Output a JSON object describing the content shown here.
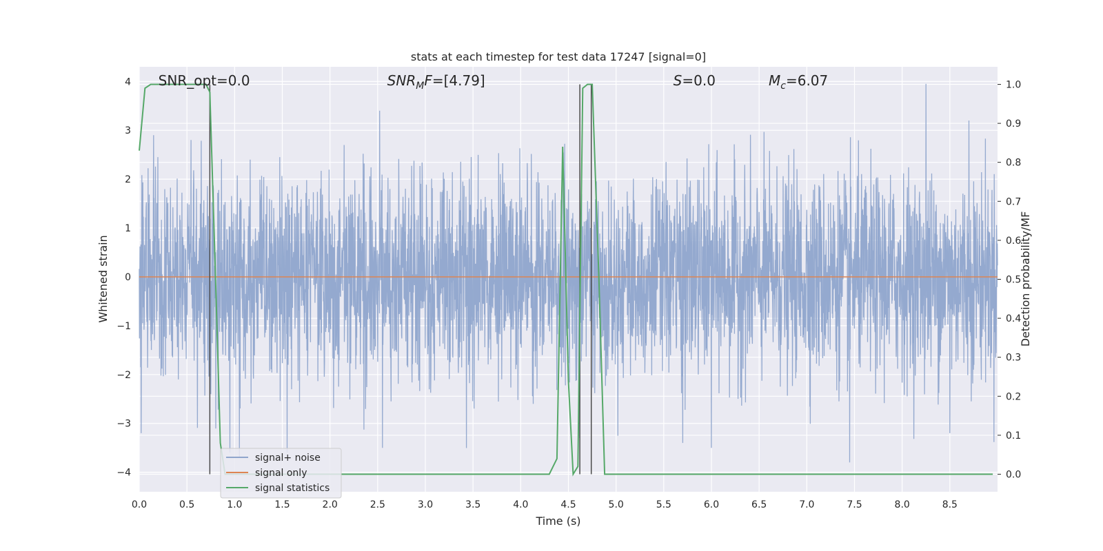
{
  "chart_data": {
    "type": "line",
    "title": "stats at each timestep for test data 17247 [signal=0]",
    "xlabel": "Time (s)",
    "ylabel": "Whitened strain",
    "y2label": "Detection probability/MF",
    "xlim": [
      0.0,
      9.0
    ],
    "ylim": [
      -4.4,
      4.3
    ],
    "y2lim": [
      -0.045,
      1.045
    ],
    "x_ticks": [
      "0.0",
      "0.5",
      "1.0",
      "1.5",
      "2.0",
      "2.5",
      "3.0",
      "3.5",
      "4.0",
      "4.5",
      "5.0",
      "5.5",
      "6.0",
      "6.5",
      "7.0",
      "7.5",
      "8.0",
      "8.5"
    ],
    "y_ticks": [
      "4",
      "3",
      "2",
      "1",
      "0",
      "−1",
      "−2",
      "−3",
      "−4"
    ],
    "y2_ticks": [
      "1.0",
      "0.9",
      "0.8",
      "0.7",
      "0.6",
      "0.5",
      "0.4",
      "0.3",
      "0.2",
      "0.1",
      "0.0"
    ],
    "grid": true,
    "legend_position": "lower-left",
    "annotations": [
      {
        "text": "SNR_opt=0.0",
        "x": 0.2
      },
      {
        "text": "SNR_MF=[4.79]",
        "x": 2.6
      },
      {
        "text": "S=0.0",
        "x": 5.6
      },
      {
        "text": "M_c=6.07",
        "x": 6.6
      }
    ],
    "series": [
      {
        "name": "signal+ noise",
        "color": "#8fa5cc",
        "axis": "left",
        "noise_sigma": 1.0,
        "range": [
          -4.0,
          3.95
        ],
        "peaks": [
          {
            "x": 0.02,
            "y": -3.2
          },
          {
            "x": 0.15,
            "y": 2.9
          },
          {
            "x": 0.75,
            "y": -2.4
          },
          {
            "x": 0.95,
            "y": -3.6
          },
          {
            "x": 1.05,
            "y": -3.7
          },
          {
            "x": 1.55,
            "y": -3.6
          },
          {
            "x": 2.52,
            "y": 3.4
          },
          {
            "x": 2.55,
            "y": -3.5
          },
          {
            "x": 4.62,
            "y": -3.3
          },
          {
            "x": 5.7,
            "y": -3.4
          },
          {
            "x": 6.0,
            "y": 3.3
          },
          {
            "x": 6.0,
            "y": -3.5
          },
          {
            "x": 7.45,
            "y": -3.8
          },
          {
            "x": 8.25,
            "y": 3.95
          },
          {
            "x": 8.5,
            "y": -3.2
          },
          {
            "x": 8.7,
            "y": 3.2
          }
        ]
      },
      {
        "name": "signal only",
        "color": "#dd8452",
        "axis": "left",
        "x": [
          0.0,
          9.0
        ],
        "y": [
          0.0,
          0.0
        ]
      },
      {
        "name": "signal statistics",
        "color": "#55a868",
        "axis": "right",
        "x": [
          0.0,
          0.06,
          0.12,
          0.2,
          0.3,
          0.5,
          0.7,
          0.74,
          0.8,
          0.85,
          0.9,
          4.3,
          4.38,
          4.44,
          4.5,
          4.55,
          4.6,
          4.65,
          4.7,
          4.75,
          4.82,
          4.88,
          8.95
        ],
        "y": [
          0.83,
          0.99,
          1.0,
          1.0,
          1.0,
          1.0,
          1.0,
          0.98,
          0.5,
          0.08,
          0.0,
          0.0,
          0.04,
          0.84,
          0.24,
          0.0,
          0.02,
          0.99,
          1.0,
          1.0,
          0.5,
          0.0,
          0.0
        ]
      }
    ],
    "vertical_markers": [
      {
        "x": 0.74,
        "color": "#4a4a4a"
      },
      {
        "x": 4.62,
        "color": "#4a4a4a"
      },
      {
        "x": 4.74,
        "color": "#4a4a4a"
      }
    ]
  }
}
